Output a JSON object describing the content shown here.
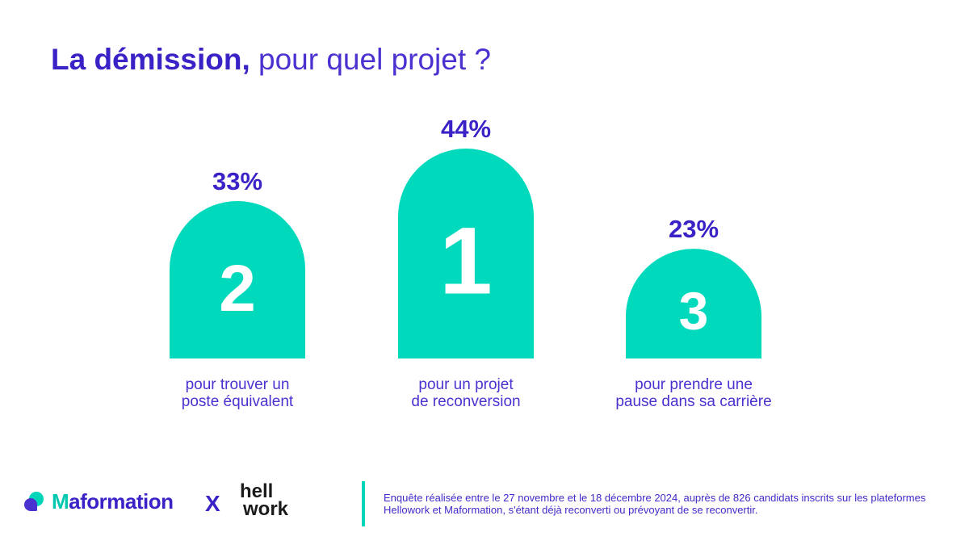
{
  "title": {
    "bold": "La démission,",
    "light": " pour quel projet ?"
  },
  "chart_data": {
    "type": "bar",
    "categories": [
      "pour trouver un poste équivalent",
      "pour un projet de reconversion",
      "pour prendre une pause dans sa carrière"
    ],
    "values": [
      33,
      44,
      23
    ],
    "value_labels": [
      "33%",
      "44%",
      "23%"
    ],
    "ranks": [
      "2",
      "1",
      "3"
    ],
    "captions": [
      [
        "pour trouver un",
        "poste équivalent"
      ],
      [
        "pour un projet",
        "de reconversion"
      ],
      [
        "pour prendre une",
        "pause dans sa carrière"
      ]
    ],
    "bar_color": "#00d9bb",
    "label_color": "#3a23c6",
    "title": "",
    "xlabel": "",
    "ylabel": ""
  },
  "footer": {
    "maformation_first": "M",
    "maformation_rest": "aformation",
    "separator": "X",
    "hellowork_line1": "hell",
    "hellowork_line2": "work",
    "note": "Enquête réalisée entre le 27 novembre et le 18 décembre 2024, auprès de 826 candidats inscrits sur les plateformes Hellowork et Maformation, s'étant déjà reconverti ou prévoyant de se reconvertir.",
    "accent_color": "#00d5b9"
  }
}
